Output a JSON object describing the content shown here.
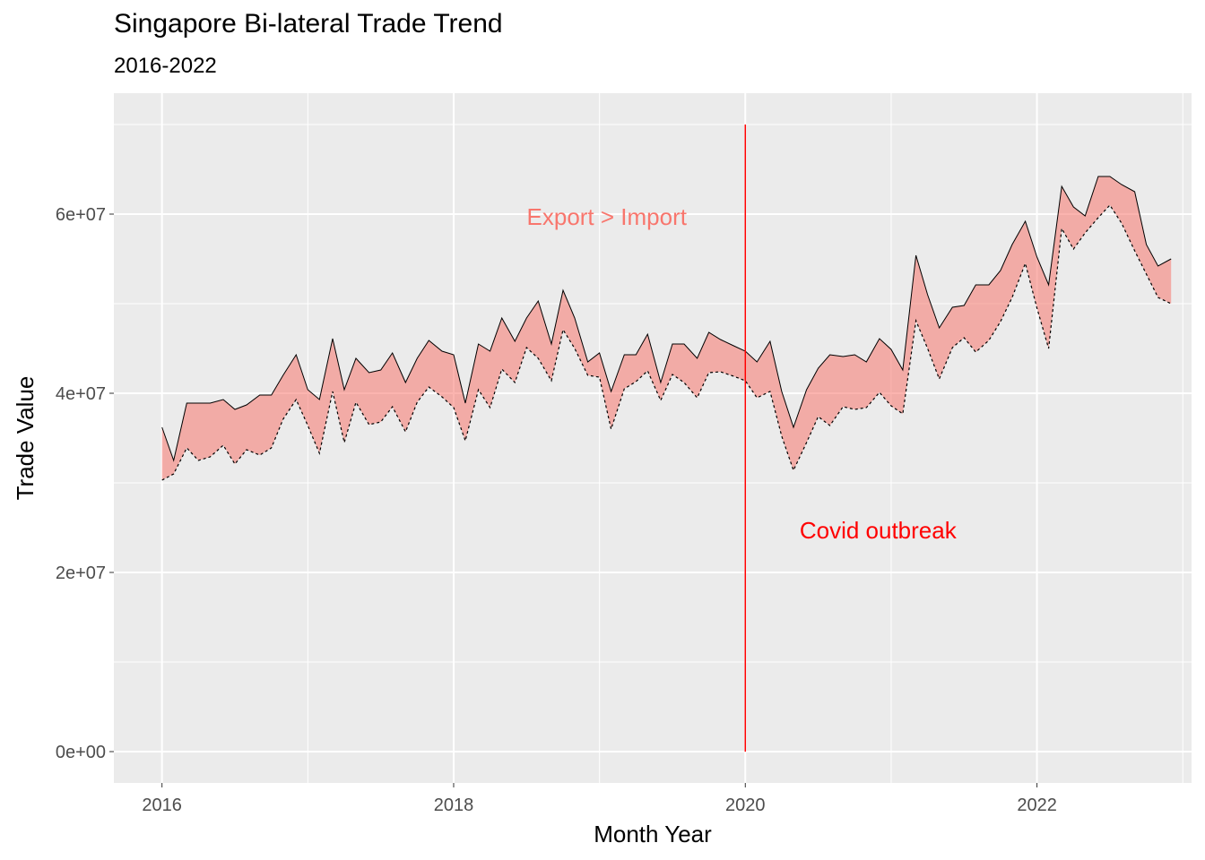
{
  "chart_data": {
    "type": "area",
    "title": "Singapore Bi-lateral Trade Trend",
    "subtitle": "2016-2022",
    "xlabel": "Month Year",
    "ylabel": "Trade Value",
    "xlim": [
      2015.67,
      2023.06
    ],
    "ylim": [
      -3500000,
      73500000
    ],
    "x_ticks": [
      2016,
      2018,
      2020,
      2022
    ],
    "x_tick_labels": [
      "2016",
      "2018",
      "2020",
      "2022"
    ],
    "y_ticks": [
      0,
      20000000,
      40000000,
      60000000
    ],
    "y_tick_labels": [
      "0e+00",
      "2e+07",
      "4e+07",
      "6e+07"
    ],
    "grid": true,
    "fill_color": "#F8766D",
    "x": [
      2016.0,
      2016.08,
      2016.17,
      2016.25,
      2016.33,
      2016.42,
      2016.5,
      2016.58,
      2016.67,
      2016.75,
      2016.83,
      2016.92,
      2017.0,
      2017.08,
      2017.17,
      2017.25,
      2017.33,
      2017.42,
      2017.5,
      2017.58,
      2017.67,
      2017.75,
      2017.83,
      2017.92,
      2018.0,
      2018.08,
      2018.17,
      2018.25,
      2018.33,
      2018.42,
      2018.5,
      2018.58,
      2018.67,
      2018.75,
      2018.83,
      2018.92,
      2019.0,
      2019.08,
      2019.17,
      2019.25,
      2019.33,
      2019.42,
      2019.5,
      2019.58,
      2019.67,
      2019.75,
      2019.83,
      2019.92,
      2020.0,
      2020.08,
      2020.17,
      2020.25,
      2020.33,
      2020.42,
      2020.5,
      2020.58,
      2020.67,
      2020.75,
      2020.83,
      2020.92,
      2021.0,
      2021.08,
      2021.17,
      2021.25,
      2021.33,
      2021.42,
      2021.5,
      2021.58,
      2021.67,
      2021.75,
      2021.83,
      2021.92,
      2022.0,
      2022.08,
      2022.17,
      2022.25,
      2022.33,
      2022.42,
      2022.5,
      2022.58,
      2022.67,
      2022.75,
      2022.83,
      2022.92
    ],
    "series": [
      {
        "name": "Export",
        "values": [
          36200000,
          32500000,
          38900000,
          38900000,
          38900000,
          39300000,
          38200000,
          38700000,
          39800000,
          39800000,
          42000000,
          44300000,
          40400000,
          39300000,
          46100000,
          40400000,
          43900000,
          42300000,
          42600000,
          44500000,
          41200000,
          43900000,
          45900000,
          44700000,
          44300000,
          38900000,
          45500000,
          44700000,
          48400000,
          45800000,
          48400000,
          50300000,
          45500000,
          51500000,
          48400000,
          43500000,
          44500000,
          40200000,
          44300000,
          44300000,
          46600000,
          41200000,
          45500000,
          45500000,
          43900000,
          46800000,
          46000000,
          45300000,
          44700000,
          43500000,
          45800000,
          40200000,
          36200000,
          40400000,
          42800000,
          44300000,
          44100000,
          44300000,
          43500000,
          46100000,
          44900000,
          42600000,
          55400000,
          51000000,
          47300000,
          49600000,
          49800000,
          52100000,
          52100000,
          53700000,
          56600000,
          59200000,
          55200000,
          52100000,
          63100000,
          60800000,
          59800000,
          64200000,
          64200000,
          63300000,
          62500000,
          56600000,
          54200000,
          55000000
        ]
      },
      {
        "name": "Import",
        "values": [
          30300000,
          31000000,
          33900000,
          32500000,
          32900000,
          34200000,
          32100000,
          33700000,
          33100000,
          33900000,
          37100000,
          39300000,
          36400000,
          33300000,
          40200000,
          34500000,
          39000000,
          36500000,
          36800000,
          38500000,
          35700000,
          39000000,
          40700000,
          39600000,
          38400000,
          34700000,
          40400000,
          38400000,
          42700000,
          41200000,
          45100000,
          43900000,
          41400000,
          47100000,
          45000000,
          42000000,
          41800000,
          36000000,
          40500000,
          41300000,
          42500000,
          39200000,
          42100000,
          41200000,
          39500000,
          42300000,
          42400000,
          41900000,
          41400000,
          39500000,
          40200000,
          35200000,
          31400000,
          34500000,
          37400000,
          36400000,
          38500000,
          38200000,
          38400000,
          40100000,
          38600000,
          37700000,
          48100000,
          45000000,
          41600000,
          45100000,
          46200000,
          44600000,
          45900000,
          48000000,
          50700000,
          54500000,
          49500000,
          45000000,
          58400000,
          56100000,
          57900000,
          59600000,
          61000000,
          59000000,
          55900000,
          53300000,
          50700000,
          50000000
        ]
      }
    ],
    "annotations": [
      {
        "text": "Export > Import",
        "x": 2019.05,
        "y": 59700000,
        "color": "#F8766D"
      },
      {
        "text": "Covid outbreak",
        "x": 2020.91,
        "y": 24700000,
        "color": "#FF0000"
      }
    ],
    "vline": {
      "x": 2020.0,
      "ymin": 0,
      "ymax": 70000000,
      "color": "#FF0000"
    }
  }
}
